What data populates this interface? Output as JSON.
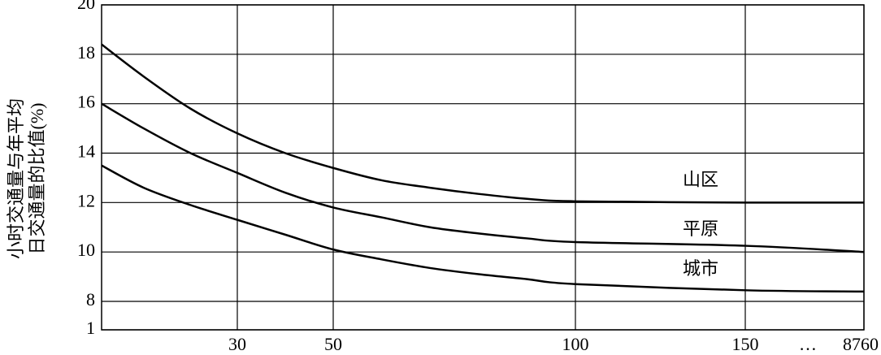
{
  "chart_data": {
    "type": "line",
    "ylabel": [
      "小时交通量与年平均",
      "日交通量的比值(%)"
    ],
    "x": [
      1,
      10,
      20,
      30,
      40,
      50,
      60,
      70,
      80,
      90,
      100,
      150,
      8760
    ],
    "series": [
      {
        "name": "山区",
        "color": "#000000",
        "values": [
          18.4,
          17.1,
          15.8,
          14.8,
          14.0,
          13.4,
          12.9,
          12.6,
          12.35,
          12.15,
          12.05,
          12.0,
          12.0
        ]
      },
      {
        "name": "平原",
        "color": "#000000",
        "values": [
          16.0,
          15.0,
          14.0,
          13.2,
          12.4,
          11.8,
          11.4,
          11.0,
          10.75,
          10.55,
          10.4,
          10.25,
          10.0
        ]
      },
      {
        "name": "城市",
        "color": "#000000",
        "values": [
          13.5,
          12.6,
          11.9,
          11.3,
          10.7,
          10.1,
          9.7,
          9.35,
          9.1,
          8.9,
          8.7,
          8.45,
          8.4
        ]
      }
    ],
    "xlim": [
      1,
      8760
    ],
    "xticks": [
      30,
      50,
      100,
      150,
      8760
    ],
    "x_break_label": "…",
    "ylim": [
      1,
      20
    ],
    "yticks": [
      1,
      8,
      10,
      12,
      14,
      16,
      18,
      20
    ],
    "axis_break": true,
    "grid": true
  }
}
